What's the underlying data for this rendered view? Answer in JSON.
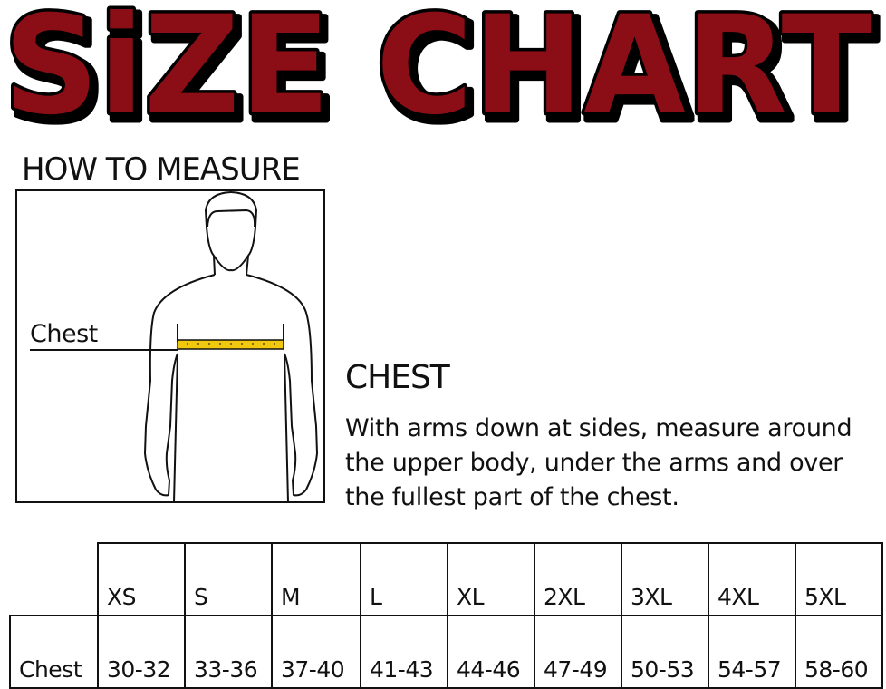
{
  "title": "SiZE CHART",
  "how_to_measure": "HOW TO MEASURE",
  "figure_label": "Chest",
  "section": {
    "heading": "CHEST",
    "description": "With arms down at sides, measure around the upper body, under the arms and over the fullest part of the chest."
  },
  "colors": {
    "title_fill": "#8b1015",
    "tape": "#f2c80f"
  },
  "table": {
    "row_label": "Chest",
    "sizes": [
      "XS",
      "S",
      "M",
      "L",
      "XL",
      "2XL",
      "3XL",
      "4XL",
      "5XL"
    ],
    "chest": [
      "30-32",
      "33-36",
      "37-40",
      "41-43",
      "44-46",
      "47-49",
      "50-53",
      "54-57",
      "58-60"
    ]
  }
}
